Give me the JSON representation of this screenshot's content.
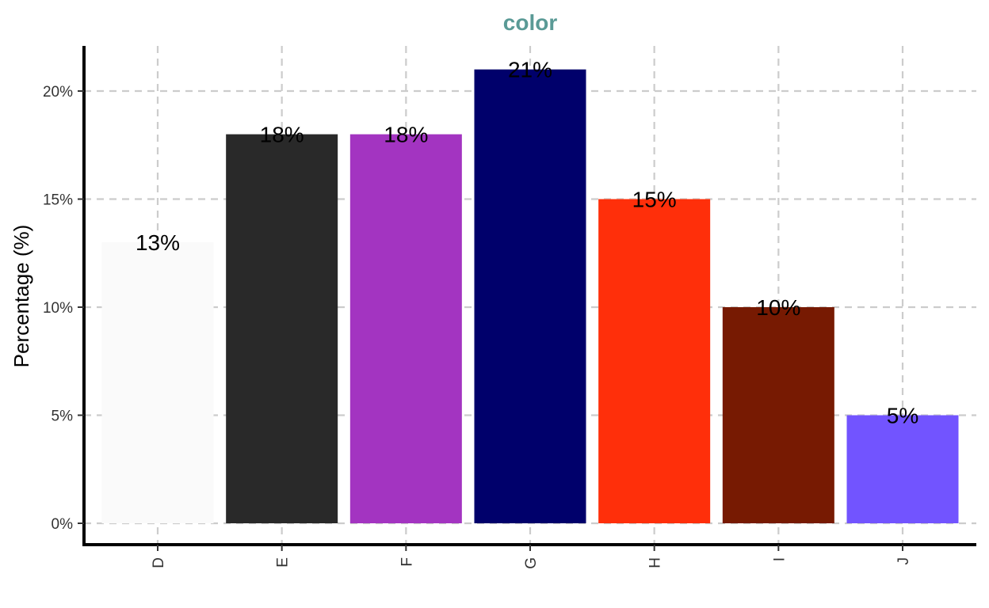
{
  "chart_data": {
    "type": "bar",
    "title": "color",
    "xlabel": "",
    "ylabel": "Percentage (%)",
    "categories": [
      "D",
      "E",
      "F",
      "G",
      "H",
      "I",
      "J"
    ],
    "values": [
      13,
      18,
      18,
      21,
      15,
      10,
      5
    ],
    "data_labels": [
      "13%",
      "18%",
      "18%",
      "21%",
      "15%",
      "10%",
      "5%"
    ],
    "colors": [
      "#FAFAFA",
      "#292929",
      "#A334C1",
      "#00006B",
      "#FF2F0A",
      "#771A02",
      "#7254FF"
    ],
    "ylim": [
      0,
      22
    ],
    "yticks": [
      0,
      5,
      10,
      15,
      20
    ],
    "ytick_labels": [
      "0%",
      "5%",
      "10%",
      "15%",
      "20%"
    ],
    "grid": true,
    "grid_style": "dashed",
    "title_color": "#5A9A96",
    "legend": "none"
  }
}
